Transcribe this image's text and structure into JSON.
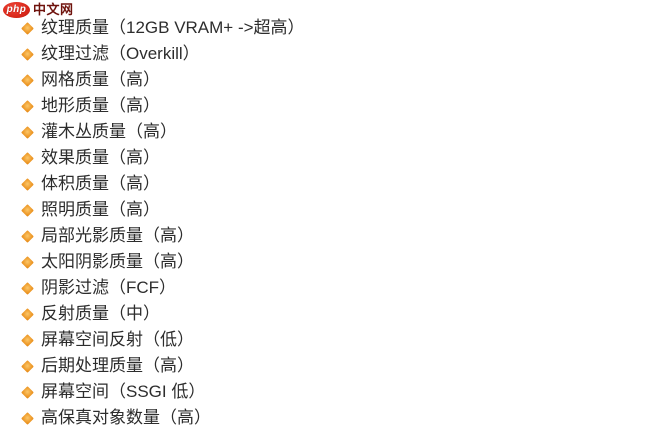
{
  "page": {
    "background_color": "#ffffff",
    "text_color": "#2d2d2d"
  },
  "logo": {
    "badge_text": "php",
    "site_name": "中文网",
    "badge_color": "#da281a",
    "badge_text_color": "#ffffff",
    "site_name_color": "#6e120c"
  },
  "settings_list": {
    "bullet_icon": "diamond-bullet",
    "bullet_color": "#f0a032",
    "items": [
      "纹理质量（12GB VRAM+ ->超高）",
      "纹理过滤（Overkill）",
      "网格质量（高）",
      "地形质量（高）",
      "灌木丛质量（高）",
      "效果质量（高）",
      "体积质量（高）",
      "照明质量（高）",
      "局部光影质量（高）",
      "太阳阴影质量（高）",
      "阴影过滤（FCF）",
      "反射质量（中）",
      "屏幕空间反射（低）",
      "后期处理质量（高）",
      "屏幕空间（SSGI 低）",
      "高保真对象数量（高）"
    ]
  }
}
